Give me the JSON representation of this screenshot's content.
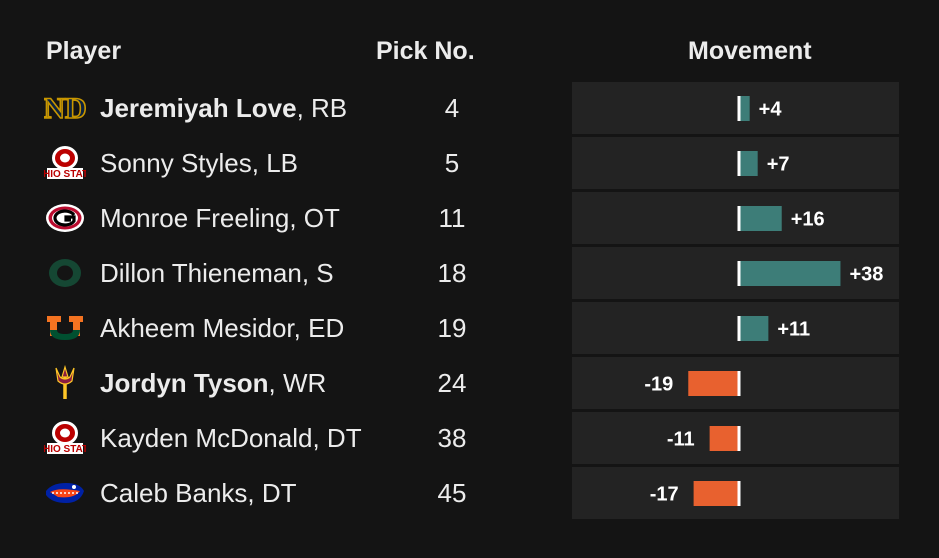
{
  "headers": {
    "player": "Player",
    "pick": "Pick No.",
    "movement": "Movement"
  },
  "colors": {
    "positive": "#3d7d78",
    "negative": "#e8612f",
    "baseline": "#ffffff",
    "row_bg": "#232323",
    "background": "#141414"
  },
  "rows": [
    {
      "name": "Jeremiyah Love",
      "pos": ", RB",
      "bold": true,
      "pick": "4",
      "movement": 4,
      "label": "+4",
      "logo": "notre-dame-icon"
    },
    {
      "name": "Sonny Styles",
      "pos": ", LB",
      "bold": false,
      "pick": "5",
      "movement": 7,
      "label": "+7",
      "logo": "ohio-state-icon"
    },
    {
      "name": "Monroe Freeling",
      "pos": ", OT",
      "bold": false,
      "pick": "11",
      "movement": 16,
      "label": "+16",
      "logo": "georgia-icon"
    },
    {
      "name": "Dillon Thieneman",
      "pos": ", S",
      "bold": false,
      "pick": "18",
      "movement": 38,
      "label": "+38",
      "logo": "oregon-icon"
    },
    {
      "name": "Akheem Mesidor",
      "pos": ", ED",
      "bold": false,
      "pick": "19",
      "movement": 11,
      "label": "+11",
      "logo": "miami-icon"
    },
    {
      "name": "Jordyn Tyson",
      "pos": ", WR",
      "bold": true,
      "pick": "24",
      "movement": -19,
      "label": "-19",
      "logo": "arizona-state-icon"
    },
    {
      "name": "Kayden McDonald",
      "pos": ", DT",
      "bold": false,
      "pick": "38",
      "movement": -11,
      "label": "-11",
      "logo": "ohio-state-icon"
    },
    {
      "name": "Caleb Banks",
      "pos": ", DT",
      "bold": false,
      "pick": "45",
      "movement": -17,
      "label": "-17",
      "logo": "florida-icon"
    }
  ],
  "chart_data": {
    "type": "bar",
    "orientation": "horizontal",
    "categories": [
      "Jeremiyah Love",
      "Sonny Styles",
      "Monroe Freeling",
      "Dillon Thieneman",
      "Akheem Mesidor",
      "Jordyn Tyson",
      "Kayden McDonald",
      "Caleb Banks"
    ],
    "values": [
      4,
      7,
      16,
      38,
      11,
      -19,
      -11,
      -17
    ],
    "data_labels": [
      "+4",
      "+7",
      "+16",
      "+38",
      "+11",
      "-19",
      "-11",
      "-17"
    ],
    "title": "Movement",
    "xlim": [
      -25,
      40
    ]
  }
}
